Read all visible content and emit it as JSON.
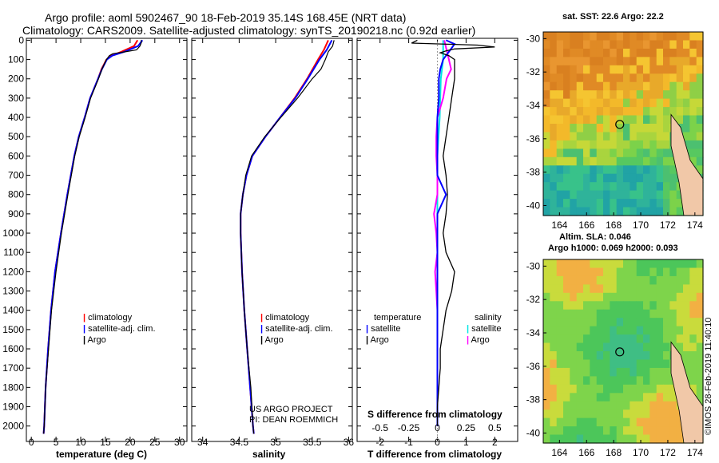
{
  "header": {
    "title_line1": "Argo profile: aoml 5902467_90 18-Feb-2019 35.14S 168.45E (NRT data)",
    "title_line2": "Climatology: CARS2009. Satellite-adjusted climatology: synTS_20190218.nc (0.92d earlier)"
  },
  "colors": {
    "climatology": "#ff0000",
    "satellite": "#0000ff",
    "argo": "#000000",
    "sal_satellite": "#00e5e5",
    "sal_argo": "#ff00ff"
  },
  "panels": {
    "temperature": {
      "xlabel": "temperature (deg C)",
      "xticks": [
        "0",
        "5",
        "10",
        "15",
        "20",
        "25",
        "30"
      ],
      "legend": {
        "climatology": "climatology",
        "satellite": "satellite-adj. clim.",
        "argo": "Argo"
      }
    },
    "salinity": {
      "xlabel": "salinity",
      "xticks": [
        "34",
        "34.5",
        "35",
        "35.5",
        "36"
      ],
      "legend": {
        "climatology": "climatology",
        "satellite": "satellite-adj. clim.",
        "argo": "Argo"
      },
      "credit1": "US ARGO PROJECT",
      "credit2": "PI: DEAN ROEMMICH"
    },
    "difference": {
      "xlabel": "T difference from climatology",
      "xlabel2": "S difference from climatology",
      "xticks": [
        "-2",
        "-1",
        "0",
        "1",
        "2"
      ],
      "xticks2": [
        "-0.5",
        "-0.25",
        "0",
        "0.25",
        "0.5"
      ],
      "legend_temp": {
        "title": "temperature",
        "satellite": "satellite",
        "argo": "Argo"
      },
      "legend_sal": {
        "title": "salinity",
        "satellite": "satellite",
        "argo": "Argo"
      }
    }
  },
  "depth_axis": {
    "ticks": [
      "0",
      "100",
      "200",
      "300",
      "400",
      "500",
      "600",
      "700",
      "800",
      "900",
      "1000",
      "1100",
      "1200",
      "1300",
      "1400",
      "1500",
      "1600",
      "1700",
      "1800",
      "1900",
      "2000"
    ]
  },
  "maps": {
    "sst": {
      "title": "sat. SST: 22.6 Argo: 22.2",
      "lat_ticks": [
        "-30",
        "-32",
        "-34",
        "-36",
        "-38",
        "-40"
      ],
      "lon_ticks": [
        "164",
        "166",
        "168",
        "170",
        "172",
        "174"
      ]
    },
    "sla": {
      "title1": "Altim. SLA: 0.046",
      "title2": "Argo h1000: 0.069 h2000: 0.093",
      "lat_ticks": [
        "-30",
        "-32",
        "-34",
        "-36",
        "-38",
        "-40"
      ],
      "lon_ticks": [
        "164",
        "166",
        "168",
        "170",
        "172",
        "174"
      ]
    },
    "float_position": {
      "lon": 168.45,
      "lat": -35.14
    }
  },
  "timestamp": "©IMOS 28-Feb-2019 11:40:10",
  "chart_data": [
    {
      "type": "line",
      "title": "temperature",
      "xlabel": "temperature (deg C)",
      "ylabel": "depth",
      "xlim": [
        -1,
        31.5
      ],
      "ylim": [
        2080,
        -10
      ],
      "series": [
        {
          "name": "climatology",
          "depth": [
            0,
            30,
            60,
            80,
            100,
            150,
            200,
            300,
            400,
            500,
            600,
            800,
            1000,
            1200,
            1400,
            1600,
            1800,
            2000,
            2040
          ],
          "values": [
            21.5,
            20.8,
            18.2,
            16.2,
            15.2,
            14.2,
            13.5,
            11.9,
            10.8,
            9.6,
            8.7,
            7.3,
            6.0,
            4.8,
            4.0,
            3.4,
            2.9,
            2.6,
            2.5
          ]
        },
        {
          "name": "satellite-adj. clim.",
          "depth": [
            0,
            30,
            60,
            80,
            100,
            150,
            200,
            300,
            400,
            500,
            600,
            800,
            1000,
            1200,
            1400,
            1600,
            1800,
            2000,
            2040
          ],
          "values": [
            22.5,
            21.6,
            18.8,
            16.4,
            15.3,
            14.3,
            13.5,
            11.9,
            10.8,
            9.6,
            8.7,
            7.3,
            6.0,
            4.8,
            4.0,
            3.4,
            2.9,
            2.6,
            2.5
          ]
        },
        {
          "name": "Argo",
          "depth": [
            0,
            10,
            30,
            50,
            60,
            70,
            80,
            90,
            100,
            150,
            200,
            300,
            400,
            500,
            600,
            800,
            1000,
            1200,
            1400,
            1600,
            1800,
            2000,
            2040
          ],
          "values": [
            22.2,
            22.3,
            22.0,
            21.3,
            19.0,
            16.5,
            15.8,
            15.5,
            15.2,
            14.3,
            13.6,
            12.0,
            10.9,
            9.7,
            8.8,
            7.4,
            6.1,
            5.0,
            4.1,
            3.5,
            2.9,
            2.6,
            2.5
          ]
        }
      ]
    },
    {
      "type": "line",
      "title": "salinity",
      "xlabel": "salinity",
      "ylabel": "depth",
      "xlim": [
        33.85,
        36.05
      ],
      "ylim": [
        2080,
        -10
      ],
      "series": [
        {
          "name": "climatology",
          "depth": [
            0,
            50,
            100,
            200,
            300,
            400,
            500,
            600,
            700,
            800,
            900,
            1000,
            1200,
            1400,
            1600,
            1800,
            2000,
            2040
          ],
          "values": [
            35.72,
            35.66,
            35.58,
            35.43,
            35.26,
            35.06,
            34.86,
            34.68,
            34.6,
            34.55,
            34.52,
            34.52,
            34.54,
            34.57,
            34.61,
            34.65,
            34.69,
            34.7
          ]
        },
        {
          "name": "satellite-adj. clim.",
          "depth": [
            0,
            50,
            100,
            200,
            300,
            400,
            500,
            600,
            700,
            800,
            900,
            1000,
            1200,
            1400,
            1600,
            1800,
            2000,
            2040
          ],
          "values": [
            35.77,
            35.7,
            35.6,
            35.44,
            35.27,
            35.06,
            34.86,
            34.68,
            34.6,
            34.55,
            34.52,
            34.52,
            34.54,
            34.57,
            34.61,
            34.65,
            34.69,
            34.7
          ]
        },
        {
          "name": "Argo",
          "depth": [
            0,
            30,
            60,
            100,
            150,
            200,
            300,
            400,
            500,
            600,
            700,
            800,
            900,
            1000,
            1200,
            1400,
            1600,
            1800,
            2000,
            2040
          ],
          "values": [
            35.8,
            35.78,
            35.72,
            35.68,
            35.62,
            35.5,
            35.3,
            35.07,
            34.85,
            34.67,
            34.59,
            34.55,
            34.52,
            34.52,
            34.54,
            34.57,
            34.61,
            34.66,
            34.69,
            34.7
          ]
        }
      ]
    },
    {
      "type": "line",
      "title": "difference from climatology",
      "xlabel": "T difference from climatology",
      "xlabel2": "S difference from climatology",
      "ylabel": "depth",
      "xlim": [
        -2.8,
        2.8
      ],
      "ylim": [
        2080,
        -10
      ],
      "series": [
        {
          "name": "temperature satellite",
          "depth": [
            0,
            20,
            40,
            60,
            80,
            100,
            150,
            200,
            300,
            400,
            600,
            700,
            800,
            900,
            1000,
            1200,
            1400,
            1600,
            1800,
            2000
          ],
          "values": [
            0.3,
            0.6,
            0.5,
            0.4,
            0.3,
            0.2,
            0.1,
            0.05,
            0.05,
            0.0,
            0.0,
            0.0,
            0.3,
            0.0,
            0.0,
            0.0,
            0.0,
            0.0,
            0.0,
            0.0
          ]
        },
        {
          "name": "temperature Argo",
          "depth": [
            0,
            15,
            25,
            35,
            45,
            55,
            65,
            80,
            100,
            150,
            200,
            300,
            400,
            500,
            600,
            700,
            800,
            900,
            1000,
            1100,
            1200,
            1300,
            1400,
            1500,
            1600,
            1700,
            1800,
            1900,
            2000
          ],
          "values": [
            -0.7,
            -0.9,
            1.4,
            2.0,
            0.6,
            0.3,
            0.1,
            0.4,
            0.6,
            0.6,
            0.6,
            0.5,
            0.4,
            0.3,
            0.2,
            0.3,
            0.35,
            0.3,
            0.2,
            0.3,
            0.6,
            0.5,
            0.3,
            0.2,
            0.1,
            0.1,
            0.05,
            0.0,
            0.0
          ]
        },
        {
          "name": "salinity satellite",
          "depth": [
            0,
            100,
            200,
            400,
            600,
            800,
            1000,
            1200,
            1400,
            1600,
            1800,
            2000
          ],
          "values": [
            0.05,
            0.05,
            0.03,
            0.02,
            0.0,
            0.0,
            0.0,
            0.0,
            0.0,
            0.0,
            0.0,
            0.0
          ]
        },
        {
          "name": "salinity Argo",
          "depth": [
            0,
            50,
            100,
            150,
            200,
            300,
            400,
            500,
            600,
            700,
            800,
            900,
            1000,
            1100,
            1200,
            1300,
            1400,
            1500,
            1600,
            1700,
            1800,
            1900,
            2000
          ],
          "values": [
            0.06,
            0.08,
            0.1,
            0.12,
            0.08,
            0.05,
            0.0,
            -0.01,
            -0.01,
            0.0,
            0.0,
            -0.03,
            -0.01,
            0.0,
            -0.02,
            -0.01,
            0.0,
            0.0,
            0.0,
            0.0,
            0.0,
            0.0,
            0.0
          ]
        }
      ]
    }
  ]
}
